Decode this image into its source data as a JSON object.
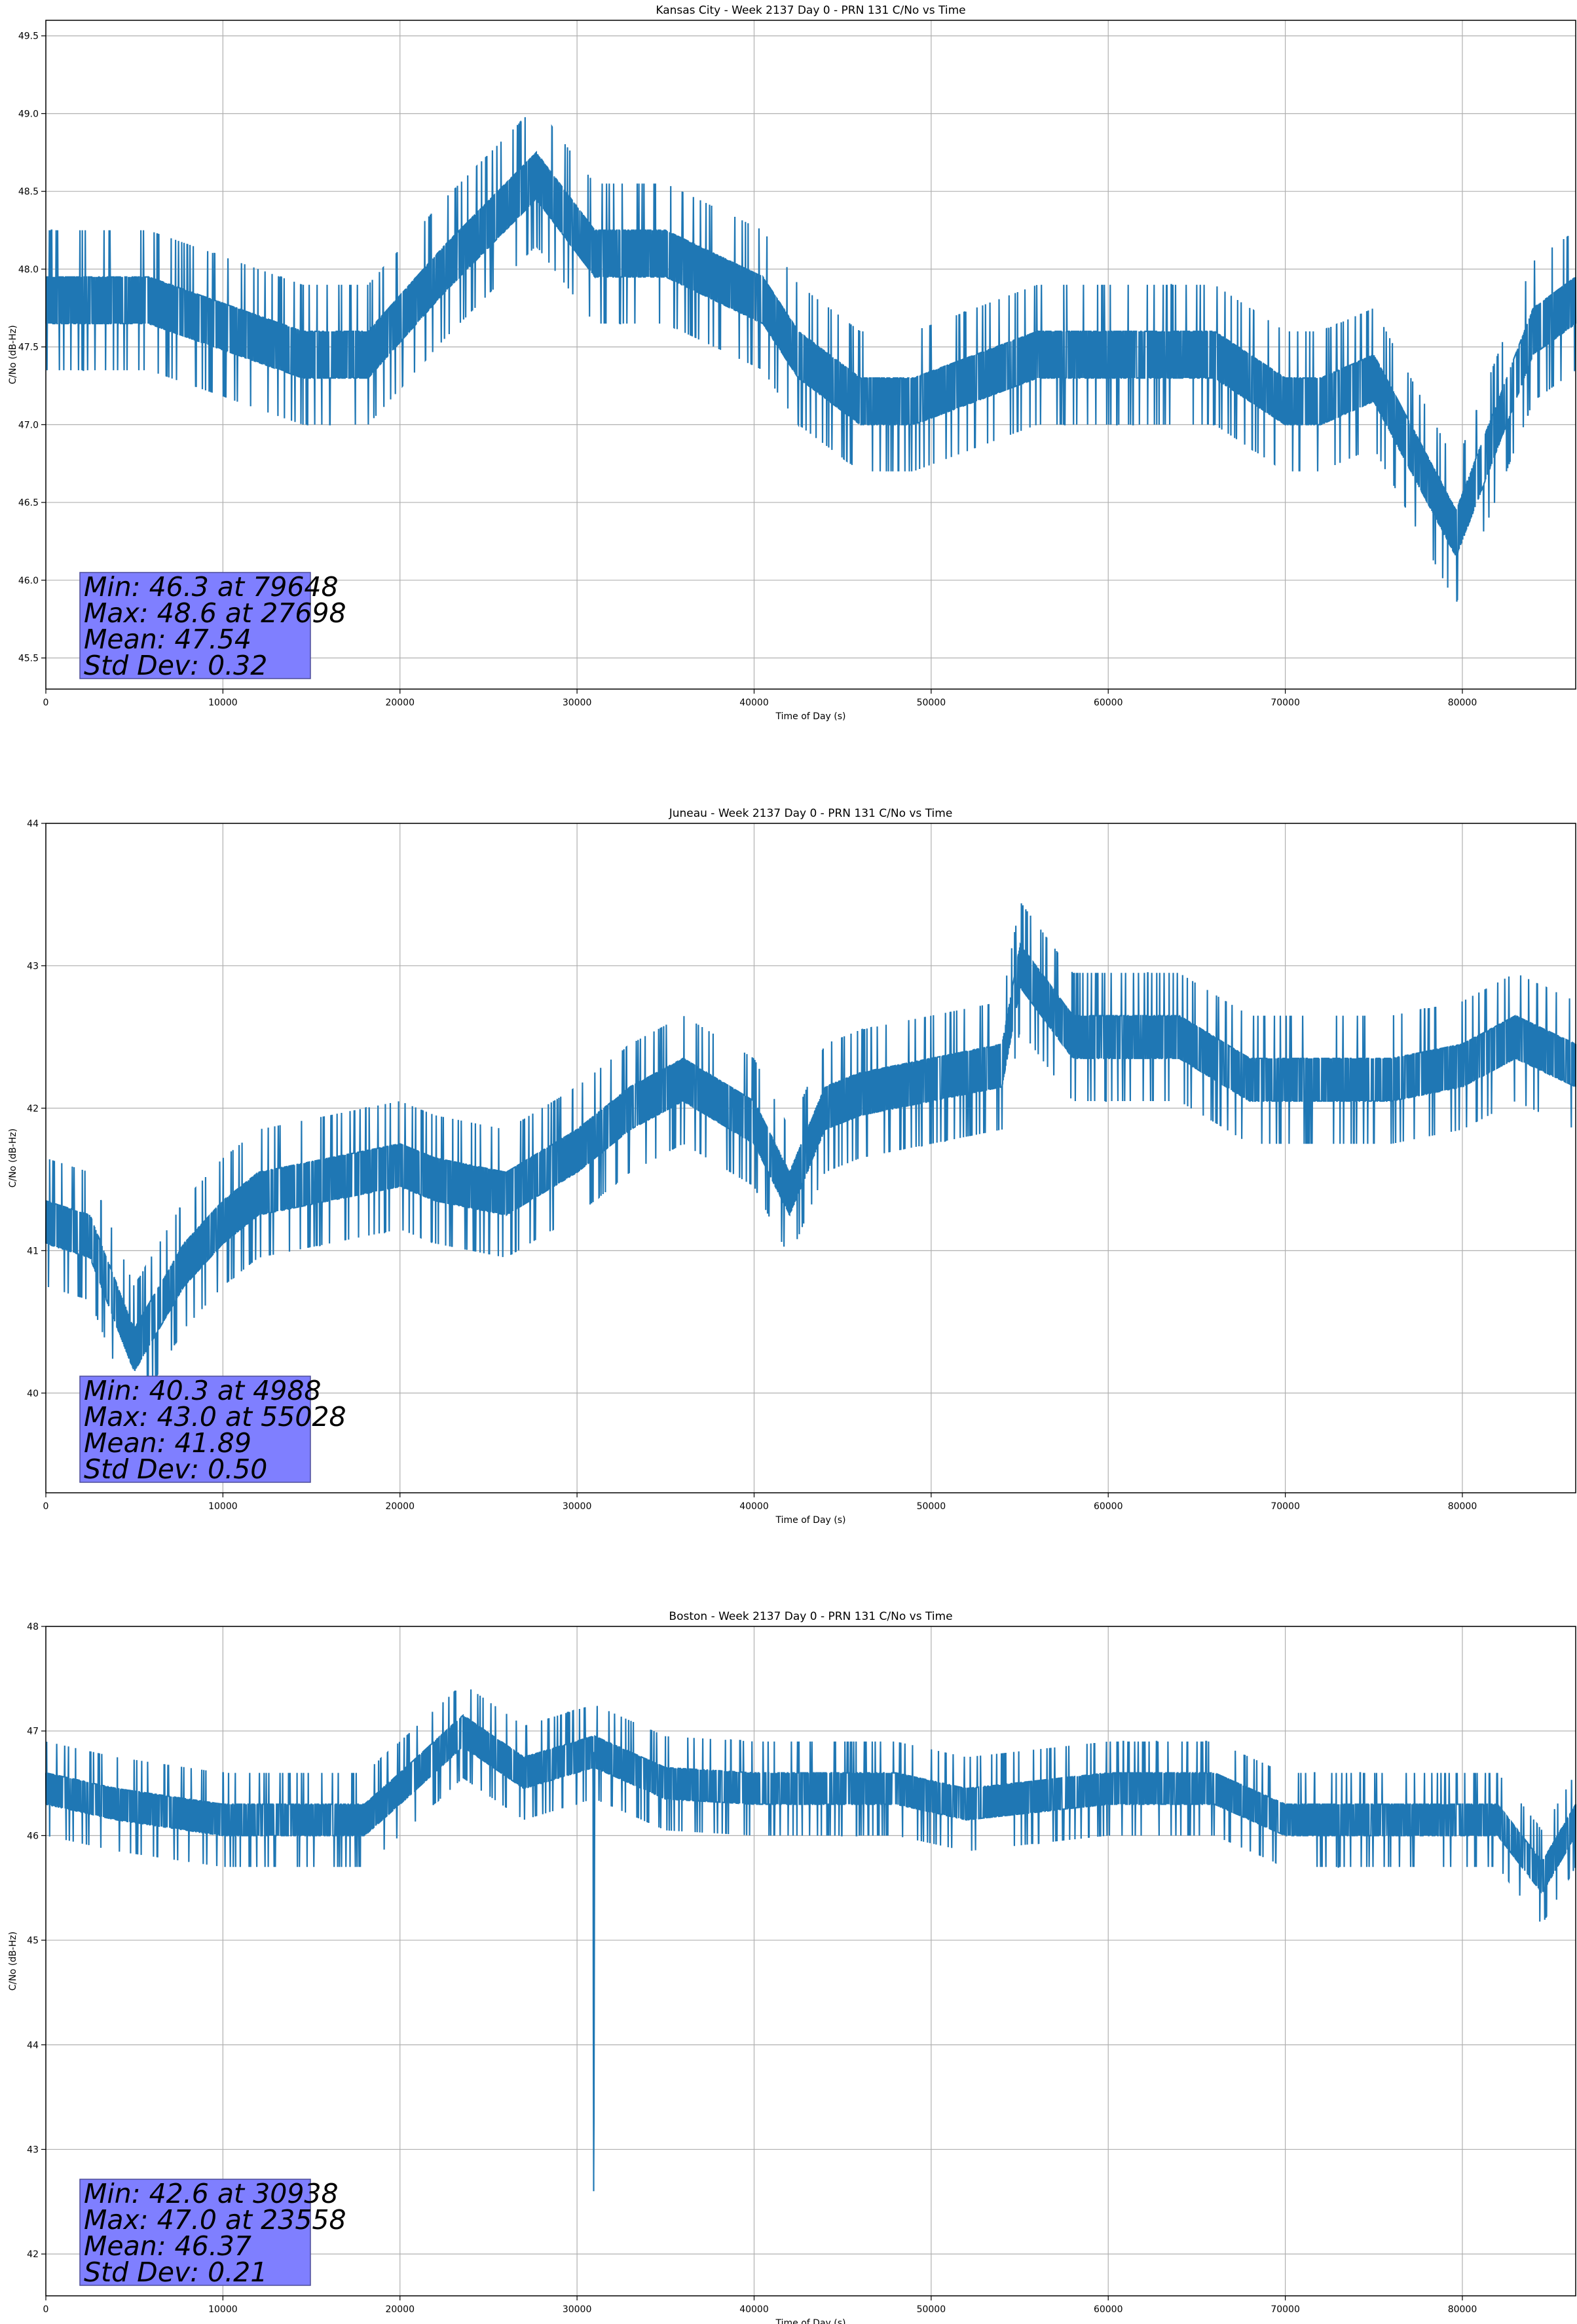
{
  "chart_data": [
    {
      "type": "line",
      "title": "Kansas City - Week 2137 Day 0 - PRN 131 C/No vs Time",
      "xlabel": "Time of Day (s)",
      "ylabel": "C/No (dB-Hz)",
      "xlim": [
        0,
        86400
      ],
      "ylim": [
        45.3,
        49.6
      ],
      "xticks": [
        "0",
        "10000",
        "20000",
        "30000",
        "40000",
        "50000",
        "60000",
        "70000",
        "80000"
      ],
      "yticks": [
        "45.5",
        "46.0",
        "46.5",
        "47.0",
        "47.5",
        "48.0",
        "48.5",
        "49.0",
        "49.5"
      ],
      "grid": true,
      "series_color": "#1f77b4",
      "series": [
        {
          "x": [
            0,
            5800,
            14500,
            18200,
            22500,
            27698,
            31000,
            35000,
            40500,
            42500,
            46000,
            49000,
            56000,
            60000,
            66000,
            70000,
            72000,
            75000,
            79648,
            84000,
            86400
          ],
          "y": [
            47.8,
            47.8,
            47.45,
            47.45,
            48.0,
            48.6,
            48.1,
            48.1,
            47.8,
            47.45,
            47.15,
            47.15,
            47.45,
            47.45,
            47.45,
            47.15,
            47.15,
            47.3,
            46.3,
            47.6,
            47.8
          ]
        }
      ],
      "stats": {
        "min": "Min: 46.3 at 79648",
        "max": "Max: 48.6 at 27698",
        "mean": "Mean: 47.54",
        "std": "Std Dev: 0.32"
      }
    },
    {
      "type": "line",
      "title": "Juneau - Week 2137 Day 0 - PRN 131 C/No vs Time",
      "xlabel": "Time of Day (s)",
      "ylabel": "C/No (dB-Hz)",
      "xlim": [
        0,
        86400
      ],
      "ylim": [
        39.3,
        44.0
      ],
      "xticks": [
        "0",
        "10000",
        "20000",
        "30000",
        "40000",
        "50000",
        "60000",
        "70000",
        "80000"
      ],
      "yticks": [
        "40",
        "41",
        "42",
        "43",
        "44"
      ],
      "grid": true,
      "series_color": "#1f77b4",
      "series": [
        {
          "x": [
            0,
            2500,
            4988,
            7800,
            10000,
            12000,
            16000,
            20000,
            22000,
            26000,
            30000,
            33000,
            36000,
            40000,
            42000,
            44000,
            46000,
            50000,
            54000,
            55028,
            58000,
            64000,
            68000,
            72000,
            76000,
            80000,
            83000,
            86400
          ],
          "y": [
            41.2,
            41.1,
            40.3,
            40.9,
            41.2,
            41.4,
            41.5,
            41.6,
            41.5,
            41.4,
            41.7,
            42.0,
            42.2,
            41.9,
            41.4,
            42.0,
            42.1,
            42.2,
            42.3,
            43.0,
            42.5,
            42.5,
            42.2,
            42.2,
            42.2,
            42.3,
            42.5,
            42.3
          ]
        }
      ],
      "stats": {
        "min": "Min: 40.3 at 4988",
        "max": "Max: 43.0 at 55028",
        "mean": "Mean: 41.89",
        "std": "Std Dev: 0.50"
      }
    },
    {
      "type": "line",
      "title": "Boston - Week 2137 Day 0 - PRN 131 C/No vs Time",
      "xlabel": "Time of Day (s)",
      "ylabel": "C/No (dB-Hz)",
      "xlim": [
        0,
        86400
      ],
      "ylim": [
        41.6,
        48.0
      ],
      "xticks": [
        "0",
        "10000",
        "20000",
        "30000",
        "40000",
        "50000",
        "60000",
        "70000",
        "80000"
      ],
      "yticks": [
        "42",
        "43",
        "44",
        "45",
        "46",
        "47",
        "48"
      ],
      "grid": true,
      "series_color": "#1f77b4",
      "series": [
        {
          "x": [
            0,
            4000,
            10000,
            18000,
            20000,
            23558,
            27000,
            30900,
            30938,
            31000,
            35000,
            40000,
            48000,
            52000,
            60000,
            66000,
            70000,
            76000,
            82000,
            84500,
            86400
          ],
          "y": [
            46.45,
            46.3,
            46.15,
            46.15,
            46.45,
            47.0,
            46.6,
            46.8,
            42.6,
            46.8,
            46.5,
            46.45,
            46.45,
            46.3,
            46.45,
            46.45,
            46.15,
            46.15,
            46.15,
            45.6,
            46.15
          ]
        }
      ],
      "stats": {
        "min": "Min: 42.6 at 30938",
        "max": "Max: 47.0 at 23558",
        "mean": "Mean: 46.37",
        "std": "Std Dev: 0.21"
      }
    }
  ]
}
